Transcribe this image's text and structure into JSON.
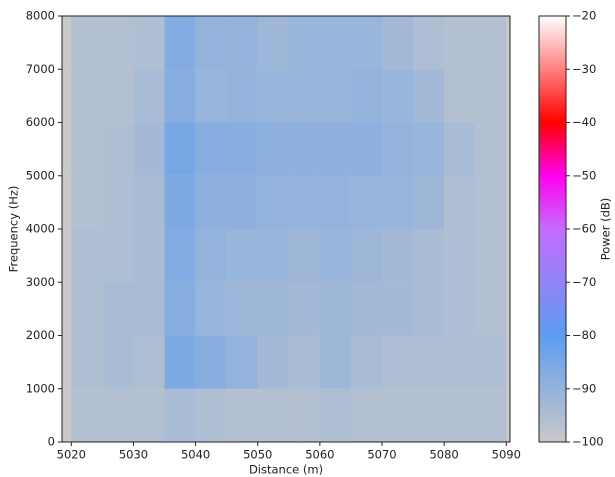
{
  "chart_data": {
    "type": "heatmap",
    "x_label": "Distance (m)",
    "y_label": "Frequency (Hz)",
    "colorbar_label": "Power (dB)",
    "x": [
      5020,
      5025,
      5030,
      5035,
      5040,
      5045,
      5050,
      5055,
      5060,
      5065,
      5070,
      5075,
      5080,
      5085,
      5090
    ],
    "y": [
      0,
      1000,
      2000,
      3000,
      4000,
      5000,
      6000,
      7000,
      8000
    ],
    "z": [
      [
        -96,
        -96,
        -96,
        -94,
        -95,
        -96,
        -96,
        -96,
        -95,
        -96,
        -96,
        -96,
        -96,
        -96
      ],
      [
        -95,
        -94,
        -95,
        -86,
        -88,
        -90,
        -93,
        -94,
        -92,
        -94,
        -95,
        -95,
        -95,
        -95
      ],
      [
        -95,
        -94,
        -94,
        -88,
        -91,
        -92,
        -92,
        -93,
        -92,
        -93,
        -93,
        -94,
        -95,
        -96
      ],
      [
        -95,
        -95,
        -94,
        -87,
        -90,
        -91,
        -91,
        -92,
        -91,
        -92,
        -93,
        -94,
        -95,
        -96
      ],
      [
        -96,
        -95,
        -94,
        -86,
        -89,
        -89,
        -90,
        -90,
        -90,
        -91,
        -91,
        -92,
        -95,
        -96
      ],
      [
        -96,
        -95,
        -93,
        -85,
        -88,
        -88,
        -89,
        -89,
        -89,
        -89,
        -90,
        -91,
        -94,
        -96
      ],
      [
        -96,
        -96,
        -94,
        -88,
        -91,
        -90,
        -91,
        -91,
        -91,
        -90,
        -91,
        -93,
        -96,
        -96
      ],
      [
        -96,
        -96,
        -95,
        -87,
        -90,
        -90,
        -92,
        -91,
        -91,
        -91,
        -93,
        -95,
        -96,
        -96
      ]
    ],
    "xlim": [
      5018.5,
      5090.6
    ],
    "ylim": [
      0,
      8000
    ],
    "xticks": [
      5020,
      5030,
      5040,
      5050,
      5060,
      5070,
      5080,
      5090
    ],
    "yticks": [
      0,
      1000,
      2000,
      3000,
      4000,
      5000,
      6000,
      7000,
      8000
    ],
    "clim": [
      -100,
      -20
    ],
    "cticks": [
      {
        "value": -20,
        "label": "−20"
      },
      {
        "value": -30,
        "label": "−30"
      },
      {
        "value": -40,
        "label": "−40"
      },
      {
        "value": -50,
        "label": "−50"
      },
      {
        "value": -60,
        "label": "−60"
      },
      {
        "value": -70,
        "label": "−70"
      },
      {
        "value": -80,
        "label": "−80"
      },
      {
        "value": -90,
        "label": "−90"
      },
      {
        "value": -100,
        "label": "−100"
      }
    ],
    "background_color": "#c9c9c9",
    "colormap": [
      {
        "value": -100,
        "color": "#c9c9c9"
      },
      {
        "value": -80,
        "color": "#5d9cf0"
      },
      {
        "value": -60,
        "color": "#c56cff"
      },
      {
        "value": -50,
        "color": "#ff00ee"
      },
      {
        "value": -40,
        "color": "#ff0000"
      },
      {
        "value": -20,
        "color": "#ffffff"
      }
    ]
  }
}
